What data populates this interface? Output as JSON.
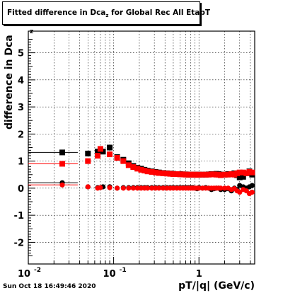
{
  "title": {
    "prefix": "Fitted difference in Dca",
    "sub": "z",
    "suffix": " for Global Rec All EtapT"
  },
  "timestamp": "Sun Oct 18 16:49:46 2020",
  "chart_data": {
    "type": "scatter",
    "title": "Fitted difference in Dcaz for Global Rec All EtapT",
    "xlabel": "pT/|q| (GeV/c)",
    "ylabel": "difference in Dca",
    "ylabel_sub": "z",
    "x_scale": "log",
    "xlim": [
      0.01,
      4.5
    ],
    "ylim": [
      -2.8,
      5.8
    ],
    "grid": true,
    "y_ticks": [
      -2,
      -1,
      0,
      1,
      2,
      3,
      4,
      5
    ],
    "x_tick_labels": [
      {
        "value": 0.01,
        "base": "10",
        "exp": "-2"
      },
      {
        "value": 0.1,
        "base": "10",
        "exp": "-1"
      },
      {
        "value": 1,
        "base": "1",
        "exp": ""
      }
    ],
    "series": [
      {
        "color": "#000000",
        "marker": "square",
        "x": [
          0.025,
          0.05,
          0.065,
          0.075,
          0.09,
          0.11,
          0.13,
          0.15,
          0.17,
          0.19,
          0.21,
          0.23,
          0.25,
          0.28,
          0.31,
          0.34,
          0.38,
          0.42,
          0.46,
          0.5,
          0.55,
          0.6,
          0.65,
          0.7,
          0.75,
          0.8,
          0.85,
          0.9,
          0.95,
          1.0,
          1.1,
          1.2,
          1.3,
          1.4,
          1.5,
          1.6,
          1.7,
          1.8,
          2.0,
          2.2,
          2.4,
          2.6,
          2.8,
          3.0,
          3.3,
          3.6,
          3.9,
          4.2
        ],
        "y": [
          1.32,
          1.28,
          1.35,
          1.35,
          1.5,
          1.15,
          1.05,
          0.92,
          0.82,
          0.75,
          0.72,
          0.68,
          0.65,
          0.62,
          0.6,
          0.58,
          0.56,
          0.55,
          0.54,
          0.53,
          0.52,
          0.52,
          0.51,
          0.51,
          0.5,
          0.5,
          0.5,
          0.5,
          0.5,
          0.5,
          0.5,
          0.5,
          0.51,
          0.52,
          0.52,
          0.53,
          0.52,
          0.5,
          0.5,
          0.52,
          0.52,
          0.55,
          0.48,
          0.4,
          0.42,
          0.55,
          0.62,
          0.5
        ]
      },
      {
        "color": "#000000",
        "marker": "circle",
        "x": [
          0.025,
          0.05,
          0.065,
          0.075,
          0.09,
          0.11,
          0.13,
          0.15,
          0.17,
          0.19,
          0.21,
          0.23,
          0.25,
          0.28,
          0.31,
          0.34,
          0.38,
          0.42,
          0.46,
          0.5,
          0.55,
          0.6,
          0.65,
          0.7,
          0.75,
          0.8,
          0.85,
          0.9,
          0.95,
          1.0,
          1.1,
          1.2,
          1.3,
          1.4,
          1.5,
          1.6,
          1.7,
          1.8,
          2.0,
          2.2,
          2.4,
          2.6,
          2.8,
          3.0,
          3.3,
          3.6,
          3.9,
          4.2
        ],
        "y": [
          0.2,
          0.05,
          0.02,
          0.05,
          0.05,
          0.0,
          0.02,
          0.02,
          0.02,
          0.02,
          0.02,
          0.02,
          0.02,
          0.02,
          0.02,
          0.02,
          0.02,
          0.02,
          0.02,
          0.02,
          0.02,
          0.02,
          0.02,
          0.02,
          0.02,
          0.02,
          0.02,
          0.0,
          -0.02,
          0.02,
          0.0,
          0.02,
          0.0,
          -0.05,
          -0.02,
          0.0,
          0.0,
          -0.05,
          -0.05,
          -0.02,
          -0.1,
          0.0,
          -0.05,
          0.1,
          0.05,
          0.0,
          0.05,
          0.1
        ]
      },
      {
        "color": "#ff0000",
        "marker": "square",
        "x": [
          0.025,
          0.05,
          0.065,
          0.07,
          0.09,
          0.11,
          0.13,
          0.15,
          0.17,
          0.19,
          0.21,
          0.23,
          0.25,
          0.28,
          0.31,
          0.34,
          0.38,
          0.42,
          0.46,
          0.5,
          0.55,
          0.6,
          0.65,
          0.7,
          0.75,
          0.8,
          0.85,
          0.9,
          0.95,
          1.0,
          1.1,
          1.2,
          1.3,
          1.4,
          1.5,
          1.6,
          1.7,
          1.8,
          2.0,
          2.2,
          2.4,
          2.6,
          2.8,
          3.0,
          3.3,
          3.6,
          3.9,
          4.2
        ],
        "y": [
          0.9,
          1.0,
          1.2,
          1.45,
          1.25,
          1.12,
          1.0,
          0.85,
          0.78,
          0.72,
          0.68,
          0.65,
          0.62,
          0.6,
          0.58,
          0.56,
          0.55,
          0.54,
          0.53,
          0.52,
          0.52,
          0.51,
          0.51,
          0.5,
          0.5,
          0.5,
          0.5,
          0.5,
          0.49,
          0.5,
          0.5,
          0.5,
          0.5,
          0.51,
          0.51,
          0.5,
          0.5,
          0.48,
          0.5,
          0.5,
          0.52,
          0.5,
          0.55,
          0.58,
          0.58,
          0.55,
          0.6,
          0.58
        ]
      },
      {
        "color": "#ff0000",
        "marker": "circle",
        "x": [
          0.025,
          0.05,
          0.065,
          0.07,
          0.09,
          0.11,
          0.13,
          0.15,
          0.17,
          0.19,
          0.21,
          0.23,
          0.25,
          0.28,
          0.31,
          0.34,
          0.38,
          0.42,
          0.46,
          0.5,
          0.55,
          0.6,
          0.65,
          0.7,
          0.75,
          0.8,
          0.85,
          0.9,
          0.95,
          1.0,
          1.1,
          1.2,
          1.3,
          1.4,
          1.5,
          1.6,
          1.7,
          1.8,
          2.0,
          2.2,
          2.4,
          2.6,
          2.8,
          3.0,
          3.3,
          3.6,
          3.9,
          4.2
        ],
        "y": [
          0.12,
          0.05,
          0.0,
          0.02,
          0.02,
          0.0,
          0.0,
          0.0,
          0.0,
          0.0,
          0.0,
          0.0,
          0.0,
          0.0,
          0.0,
          0.0,
          0.0,
          0.0,
          0.0,
          0.0,
          0.0,
          0.0,
          0.0,
          0.0,
          0.0,
          0.0,
          0.0,
          0.0,
          0.0,
          0.0,
          0.0,
          0.0,
          0.0,
          0.0,
          0.0,
          0.0,
          0.0,
          0.0,
          0.0,
          0.0,
          -0.05,
          -0.02,
          -0.1,
          -0.15,
          -0.05,
          -0.1,
          -0.2,
          -0.15
        ]
      }
    ]
  }
}
